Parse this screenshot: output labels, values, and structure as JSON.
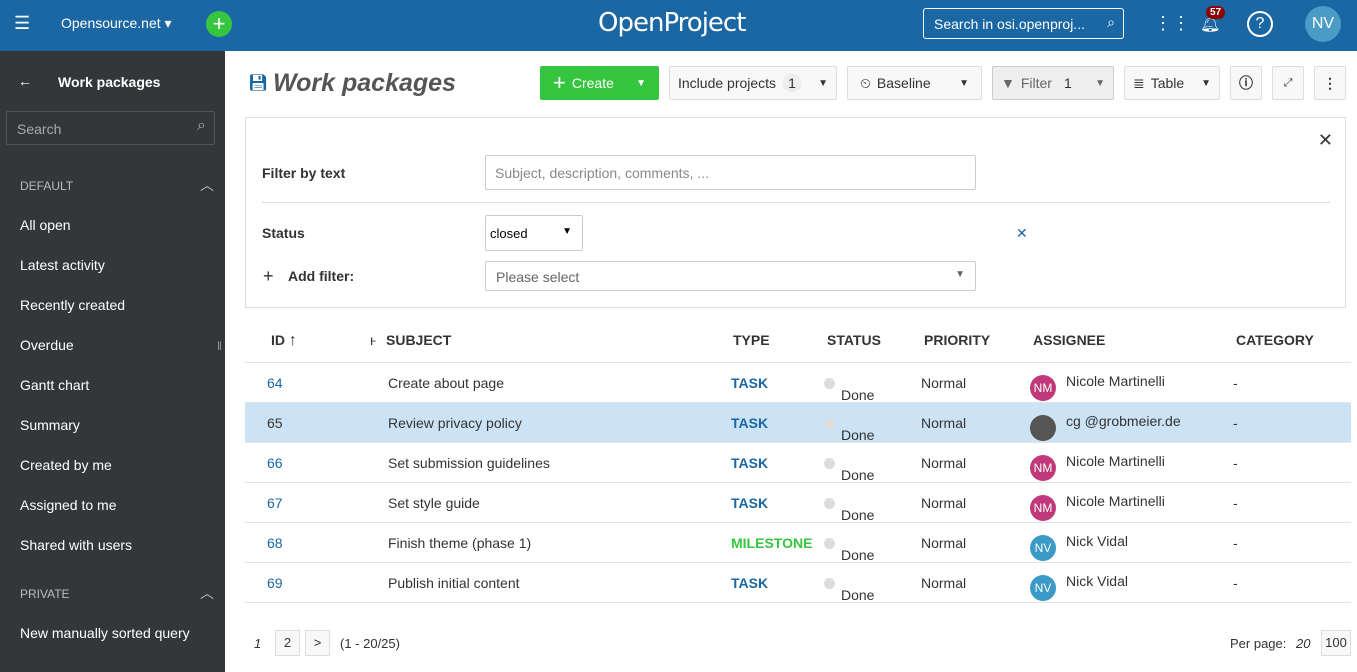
{
  "header": {
    "project": "Opensource.net",
    "logo": "OpenProject",
    "search_placeholder": "Search in osi.openproj...",
    "notifications": "57",
    "avatar": "NV"
  },
  "sidebar": {
    "title": "Work packages",
    "search_placeholder": "Search",
    "sections": [
      {
        "label": "DEFAULT",
        "items": [
          "All open",
          "Latest activity",
          "Recently created",
          "Overdue",
          "Gantt chart",
          "Summary",
          "Created by me",
          "Assigned to me",
          "Shared with users"
        ]
      },
      {
        "label": "PRIVATE",
        "items": [
          "New manually sorted query"
        ]
      }
    ]
  },
  "toolbar": {
    "title": "Work packages",
    "create": "Create",
    "include_projects": "Include projects",
    "include_count": "1",
    "baseline": "Baseline",
    "filter": "Filter",
    "filter_count": "1",
    "table": "Table"
  },
  "filters": {
    "text_label": "Filter by text",
    "text_placeholder": "Subject, description, comments, ...",
    "status_label": "Status",
    "status_value": "closed",
    "add_label": "Add filter:",
    "add_placeholder": "Please select"
  },
  "table": {
    "columns": [
      "ID",
      "SUBJECT",
      "TYPE",
      "STATUS",
      "PRIORITY",
      "ASSIGNEE",
      "CATEGORY"
    ],
    "rows": [
      {
        "id": "64",
        "subject": "Create about page",
        "type": "TASK",
        "status": "Done",
        "priority": "Normal",
        "assignee": "Nicole Martinelli",
        "initials": "NM",
        "category": "-"
      },
      {
        "id": "65",
        "subject": "Review privacy policy",
        "type": "TASK",
        "status": "Done",
        "priority": "Normal",
        "assignee": "cg @grobmeier.de",
        "initials": "",
        "category": "-"
      },
      {
        "id": "66",
        "subject": "Set submission guidelines",
        "type": "TASK",
        "status": "Done",
        "priority": "Normal",
        "assignee": "Nicole Martinelli",
        "initials": "NM",
        "category": "-"
      },
      {
        "id": "67",
        "subject": "Set style guide",
        "type": "TASK",
        "status": "Done",
        "priority": "Normal",
        "assignee": "Nicole Martinelli",
        "initials": "NM",
        "category": "-"
      },
      {
        "id": "68",
        "subject": "Finish theme (phase 1)",
        "type": "MILESTONE",
        "status": "Done",
        "priority": "Normal",
        "assignee": "Nick Vidal",
        "initials": "NV",
        "category": "-"
      },
      {
        "id": "69",
        "subject": "Publish initial content",
        "type": "TASK",
        "status": "Done",
        "priority": "Normal",
        "assignee": "Nick Vidal",
        "initials": "NV",
        "category": "-"
      }
    ]
  },
  "pagination": {
    "pages": [
      "1",
      "2"
    ],
    "next": ">",
    "range": "(1 - 20/25)",
    "per_page_label": "Per page:",
    "per_page": [
      "20",
      "100"
    ]
  },
  "colors": {
    "header": "#1a67a3",
    "sidebar": "#333739",
    "accent_green": "#35c53f",
    "task": "#1a67a3",
    "milestone": "#35c53f",
    "selected_row": "#cce3f5"
  }
}
